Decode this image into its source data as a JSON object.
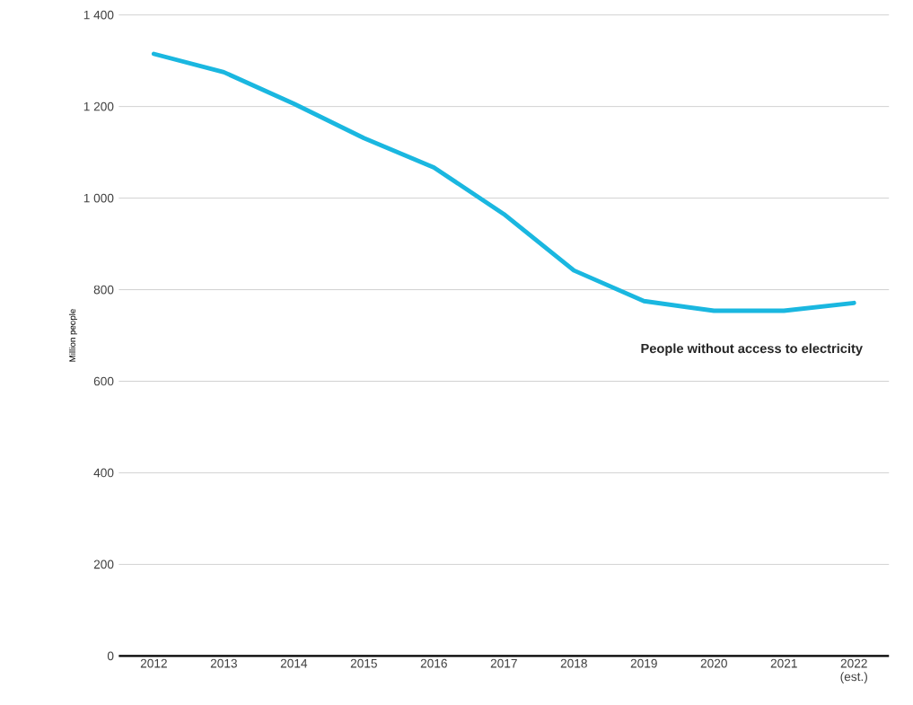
{
  "chart_data": {
    "type": "line",
    "ylabel": "Million people",
    "categories": [
      "2012",
      "2013",
      "2014",
      "2015",
      "2016",
      "2017",
      "2018",
      "2019",
      "2020",
      "2021",
      "2022 (est.)"
    ],
    "series": [
      {
        "name": "People without access to electricity",
        "color": "#1ab7e0",
        "values": [
          1315,
          1275,
          1206,
          1131,
          1067,
          965,
          842,
          775,
          754,
          754,
          771
        ]
      }
    ],
    "ylim": [
      0,
      1400
    ],
    "yticks": [
      0,
      200,
      400,
      600,
      800,
      {
        "value": 1000,
        "label": "1 000"
      },
      {
        "value": 1200,
        "label": "1 200"
      },
      {
        "value": 1400,
        "label": "1 400"
      }
    ],
    "grid": "y",
    "legend": false,
    "marker": "none",
    "line_style": "solid"
  }
}
